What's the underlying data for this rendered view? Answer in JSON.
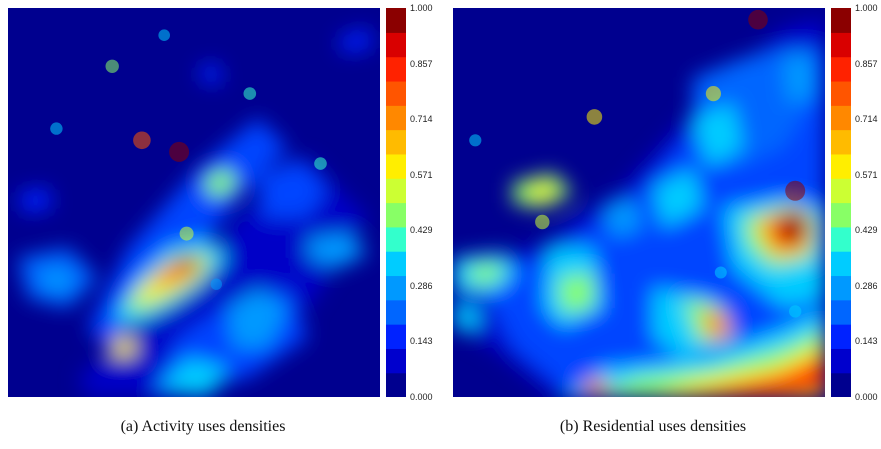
{
  "chart_data": [
    {
      "type": "heatmap",
      "caption": "(a) Activity uses densities",
      "colorbar": {
        "min": 0.0,
        "max": 1.0,
        "ticks": [
          "1.000",
          "0.857",
          "0.714",
          "0.571",
          "0.429",
          "0.286",
          "0.143",
          "0.000"
        ]
      },
      "hotspots": [
        {
          "x": 0.46,
          "y": 0.37,
          "value": 1.0
        },
        {
          "x": 0.36,
          "y": 0.34,
          "value": 0.8
        },
        {
          "x": 0.48,
          "y": 0.58,
          "value": 0.5
        },
        {
          "x": 0.28,
          "y": 0.15,
          "value": 0.45
        },
        {
          "x": 0.65,
          "y": 0.22,
          "value": 0.38
        },
        {
          "x": 0.42,
          "y": 0.07,
          "value": 0.3
        },
        {
          "x": 0.84,
          "y": 0.4,
          "value": 0.38
        },
        {
          "x": 0.13,
          "y": 0.31,
          "value": 0.36
        },
        {
          "x": 0.56,
          "y": 0.71,
          "value": 0.28
        }
      ]
    },
    {
      "type": "heatmap",
      "caption": "(b) Residential uses densities",
      "colorbar": {
        "min": 0.0,
        "max": 1.0,
        "ticks": [
          "1.000",
          "0.857",
          "0.714",
          "0.571",
          "0.429",
          "0.286",
          "0.143",
          "0.000"
        ]
      },
      "hotspots": [
        {
          "x": 0.92,
          "y": 0.47,
          "value": 1.0
        },
        {
          "x": 0.82,
          "y": 0.03,
          "value": 0.97
        },
        {
          "x": 0.38,
          "y": 0.28,
          "value": 0.63
        },
        {
          "x": 0.7,
          "y": 0.22,
          "value": 0.6
        },
        {
          "x": 0.24,
          "y": 0.55,
          "value": 0.53
        },
        {
          "x": 0.06,
          "y": 0.34,
          "value": 0.35
        },
        {
          "x": 0.72,
          "y": 0.68,
          "value": 0.33
        },
        {
          "x": 0.92,
          "y": 0.78,
          "value": 0.36
        }
      ]
    }
  ],
  "colors": {
    "scale": [
      "#00008f",
      "#0000cd",
      "#0022ff",
      "#0066ff",
      "#0099ff",
      "#00ccff",
      "#33ffcc",
      "#88ff66",
      "#ccff33",
      "#ffee00",
      "#ffbb00",
      "#ff8800",
      "#ff5500",
      "#ff2200",
      "#d90000",
      "#8b0000"
    ]
  }
}
